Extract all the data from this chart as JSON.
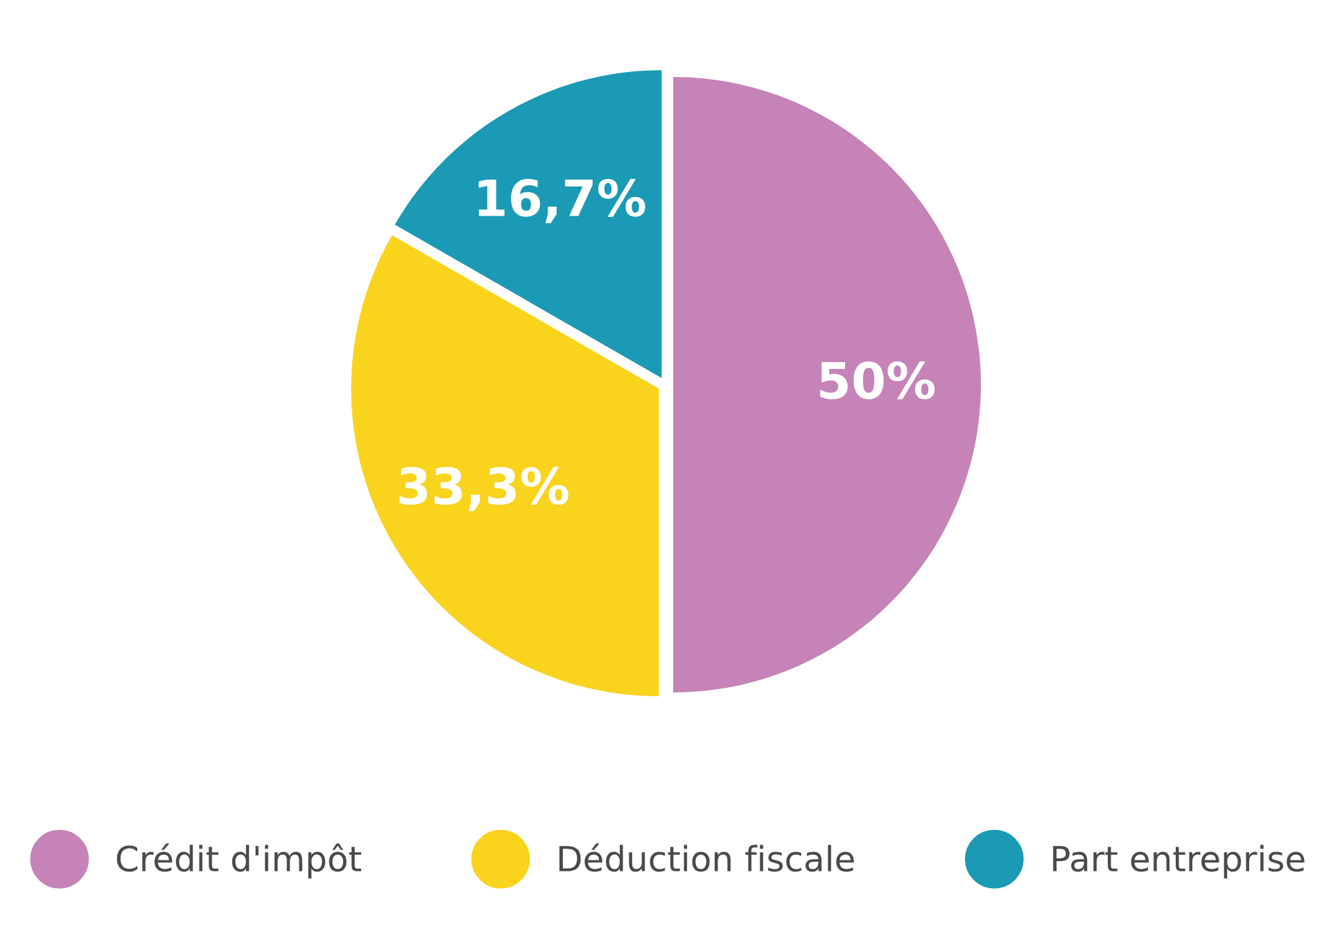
{
  "chart_data": {
    "type": "pie",
    "categories": [
      "Crédit d'impôt",
      "Déduction fiscale",
      "Part entreprise"
    ],
    "values": [
      50,
      33.3,
      16.7
    ],
    "colors": [
      "#c583b7",
      "#f9d31c",
      "#1a9ab5"
    ],
    "value_labels": [
      "50%",
      "33,3%",
      "16,7%"
    ],
    "legend": "bottom"
  }
}
